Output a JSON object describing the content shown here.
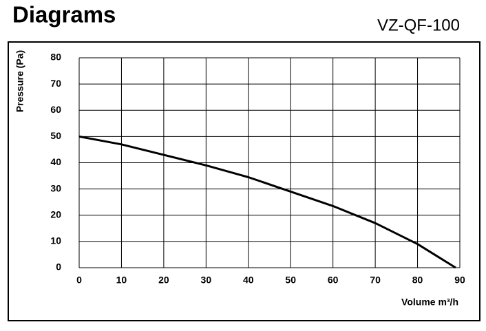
{
  "chart_data": {
    "type": "line",
    "title": "Diagrams",
    "subtitle": "VZ-QF-100",
    "x_label": "Volume m³/h",
    "y_label": "Pressure (Pa)",
    "x": [
      0,
      10,
      20,
      30,
      40,
      50,
      60,
      70,
      80,
      89
    ],
    "values": [
      50,
      47,
      43,
      39,
      34.5,
      29,
      23.5,
      17,
      9,
      0
    ],
    "color": "#000000",
    "xlim": [
      0,
      90
    ],
    "xticks": [
      0,
      10,
      20,
      30,
      40,
      50,
      60,
      70,
      80,
      90
    ],
    "ylim": [
      0,
      80
    ],
    "yticks": [
      0,
      10,
      20,
      30,
      40,
      50,
      60,
      70,
      80
    ],
    "grid": true
  }
}
